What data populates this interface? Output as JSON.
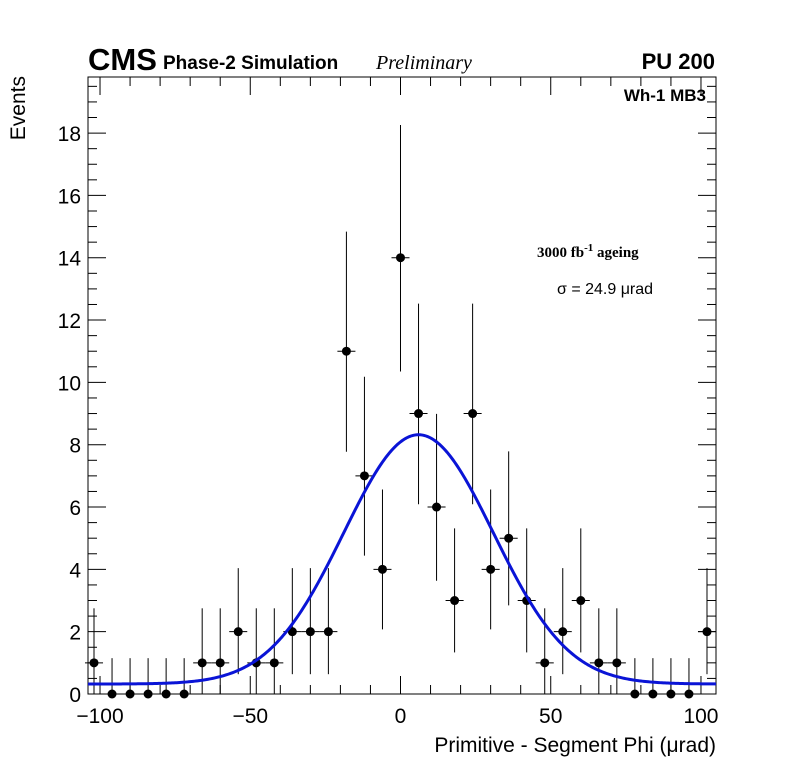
{
  "header": {
    "experiment": "CMS",
    "simulation": "Phase-2 Simulation",
    "status": "Preliminary",
    "pileup": "PU 200"
  },
  "labels": {
    "station": "Wh-1 MB3",
    "ageing_main": "3000 fb",
    "ageing_exp": "-1",
    "ageing_tail": " ageing",
    "sigma": "σ = 24.9 μrad"
  },
  "colors": {
    "fit": "#0a14d6",
    "points": "#000000"
  },
  "chart_data": {
    "type": "scatter",
    "title": "",
    "xlabel": "Primitive - Segment Phi (μrad)",
    "ylabel": "Events",
    "xlim": [
      -104,
      105
    ],
    "ylim": [
      0,
      19.8
    ],
    "x_ticks": [
      -100,
      -50,
      0,
      50,
      100
    ],
    "x_tick_labels": [
      "−100",
      "−50",
      "0",
      "50",
      "100"
    ],
    "y_ticks": [
      0,
      2,
      4,
      6,
      8,
      10,
      12,
      14,
      16,
      18
    ],
    "y_tick_labels": [
      "0",
      "2",
      "4",
      "6",
      "8",
      "10",
      "12",
      "14",
      "16",
      "18"
    ],
    "bin_halfwidth": 3,
    "series": [
      {
        "name": "Events",
        "type": "points-with-errors",
        "x": [
          -102,
          -96,
          -90,
          -84,
          -78,
          -72,
          -66,
          -60,
          -54,
          -48,
          -42,
          -36,
          -30,
          -24,
          -18,
          -12,
          -6,
          0,
          6,
          12,
          18,
          24,
          30,
          36,
          42,
          48,
          54,
          60,
          66,
          72,
          78,
          84,
          90,
          96,
          102
        ],
        "y": [
          1,
          0,
          0,
          0,
          0,
          0,
          1,
          1,
          2,
          1,
          1,
          2,
          2,
          2,
          11,
          7,
          4,
          14,
          9,
          6,
          3,
          9,
          4,
          5,
          3,
          1,
          2,
          3,
          1,
          1,
          0,
          0,
          0,
          0,
          2
        ]
      },
      {
        "name": "Gaussian fit",
        "type": "gaussian",
        "amplitude": 8.0,
        "mean": 6,
        "sigma": 24.9,
        "baseline": 0.32
      }
    ]
  }
}
